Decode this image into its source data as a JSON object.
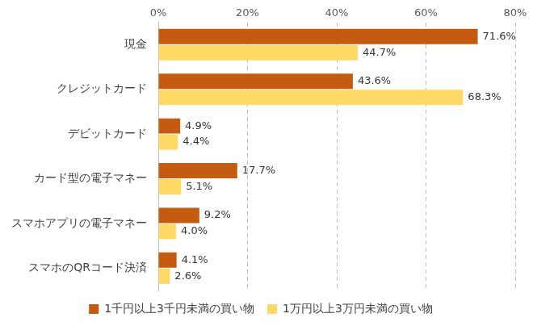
{
  "chart_data": {
    "type": "bar",
    "orientation": "horizontal",
    "categories": [
      "現金",
      "クレジットカード",
      "デビットカード",
      "カード型の電子マネー",
      "スマホアプリの電子マネー",
      "スマホのQRコード決済"
    ],
    "series": [
      {
        "name": "1千円以上3千円未満の買い物",
        "color": "#c55a11",
        "values": [
          71.6,
          43.6,
          4.9,
          17.7,
          9.2,
          4.1
        ],
        "value_labels": [
          "71.6%",
          "43.6%",
          "4.9%",
          "17.7%",
          "9.2%",
          "4.1%"
        ]
      },
      {
        "name": "1万円以上3万円未満の買い物",
        "color": "#ffd966",
        "values": [
          44.7,
          68.3,
          4.4,
          5.1,
          4.0,
          2.6
        ],
        "value_labels": [
          "44.7%",
          "68.3%",
          "4.4%",
          "5.1%",
          "4.0%",
          "2.6%"
        ]
      }
    ],
    "xlim": [
      0,
      80
    ],
    "xticks": [
      {
        "value": 0,
        "label": "0%"
      },
      {
        "value": 20,
        "label": "20%"
      },
      {
        "value": 40,
        "label": "40%"
      },
      {
        "value": 60,
        "label": "60%"
      },
      {
        "value": 80,
        "label": "80%"
      }
    ],
    "grid": true,
    "data_labels": true,
    "legend": "bottom"
  }
}
